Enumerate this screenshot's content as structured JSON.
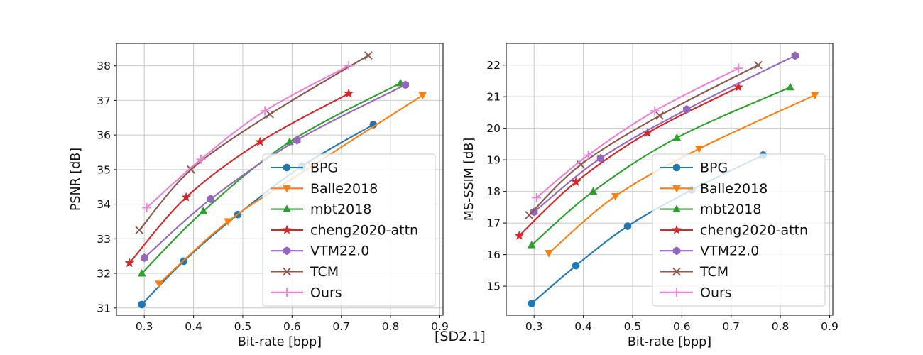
{
  "page": {
    "background": "#ffffff",
    "footnote": "[SD2.1]"
  },
  "legend_labels": [
    "BPG",
    "Balle2018",
    "mbt2018",
    "cheng2020-attn",
    "VTM22.0",
    "TCM",
    "Ours"
  ],
  "chart_data": [
    {
      "type": "line",
      "title": "",
      "xlabel": "Bit-rate [bpp]",
      "ylabel": "PSNR [dB]",
      "xlim": [
        0.2435,
        0.9065
      ],
      "ylim": [
        30.79,
        38.65
      ],
      "xticks": [
        0.3,
        0.4,
        0.5,
        0.6,
        0.7,
        0.8,
        0.9
      ],
      "yticks": [
        31,
        32,
        33,
        34,
        35,
        36,
        37,
        38
      ],
      "grid": true,
      "legend_position": "lower right",
      "series": [
        {
          "name": "BPG",
          "color": "#1f77b4",
          "marker": "circle",
          "points": [
            [
              0.295,
              31.1
            ],
            [
              0.38,
              32.35
            ],
            [
              0.49,
              33.7
            ],
            [
              0.62,
              35.1
            ],
            [
              0.765,
              36.3
            ]
          ]
        },
        {
          "name": "Balle2018",
          "color": "#ff7f0e",
          "marker": "triangle-down",
          "points": [
            [
              0.33,
              31.7
            ],
            [
              0.47,
              33.5
            ],
            [
              0.64,
              35.1
            ],
            [
              0.865,
              37.15
            ]
          ]
        },
        {
          "name": "mbt2018",
          "color": "#2ca02c",
          "marker": "triangle-up",
          "points": [
            [
              0.295,
              32.0
            ],
            [
              0.42,
              33.8
            ],
            [
              0.595,
              35.8
            ],
            [
              0.82,
              37.5
            ]
          ]
        },
        {
          "name": "cheng2020-attn",
          "color": "#d62728",
          "marker": "star",
          "points": [
            [
              0.27,
              32.3
            ],
            [
              0.385,
              34.2
            ],
            [
              0.535,
              35.8
            ],
            [
              0.715,
              37.2
            ]
          ]
        },
        {
          "name": "VTM22.0",
          "color": "#9467bd",
          "marker": "hexagon",
          "points": [
            [
              0.3,
              32.45
            ],
            [
              0.435,
              34.15
            ],
            [
              0.61,
              35.85
            ],
            [
              0.83,
              37.45
            ]
          ]
        },
        {
          "name": "TCM",
          "color": "#8c564b",
          "marker": "x",
          "points": [
            [
              0.29,
              33.25
            ],
            [
              0.395,
              35.0
            ],
            [
              0.555,
              36.6
            ],
            [
              0.755,
              38.3
            ]
          ]
        },
        {
          "name": "Ours",
          "color": "#ee80d6",
          "marker": "plus",
          "points": [
            [
              0.305,
              33.9
            ],
            [
              0.415,
              35.3
            ],
            [
              0.545,
              36.7
            ],
            [
              0.715,
              38.0
            ]
          ]
        }
      ]
    },
    {
      "type": "line",
      "title": "",
      "xlabel": "Bit-rate [bpp]",
      "ylabel": "MS-SSIM [dB]",
      "xlim": [
        0.2435,
        0.9065
      ],
      "ylim": [
        14.08,
        22.69
      ],
      "xticks": [
        0.3,
        0.4,
        0.5,
        0.6,
        0.7,
        0.8,
        0.9
      ],
      "yticks": [
        15,
        16,
        17,
        18,
        19,
        20,
        21,
        22
      ],
      "grid": true,
      "legend_position": "lower right",
      "series": [
        {
          "name": "BPG",
          "color": "#1f77b4",
          "marker": "circle",
          "points": [
            [
              0.295,
              14.45
            ],
            [
              0.385,
              15.65
            ],
            [
              0.49,
              16.9
            ],
            [
              0.62,
              18.05
            ],
            [
              0.765,
              19.15
            ]
          ]
        },
        {
          "name": "Balle2018",
          "color": "#ff7f0e",
          "marker": "triangle-down",
          "points": [
            [
              0.33,
              16.05
            ],
            [
              0.465,
              17.85
            ],
            [
              0.635,
              19.35
            ],
            [
              0.87,
              21.05
            ]
          ]
        },
        {
          "name": "mbt2018",
          "color": "#2ca02c",
          "marker": "triangle-up",
          "points": [
            [
              0.295,
              16.3
            ],
            [
              0.42,
              18.0
            ],
            [
              0.59,
              19.7
            ],
            [
              0.82,
              21.3
            ]
          ]
        },
        {
          "name": "cheng2020-attn",
          "color": "#d62728",
          "marker": "star",
          "points": [
            [
              0.27,
              16.6
            ],
            [
              0.385,
              18.3
            ],
            [
              0.53,
              19.85
            ],
            [
              0.715,
              21.3
            ]
          ]
        },
        {
          "name": "VTM22.0",
          "color": "#9467bd",
          "marker": "hexagon",
          "points": [
            [
              0.3,
              17.35
            ],
            [
              0.435,
              19.05
            ],
            [
              0.61,
              20.6
            ],
            [
              0.83,
              22.3
            ]
          ]
        },
        {
          "name": "TCM",
          "color": "#8c564b",
          "marker": "x",
          "points": [
            [
              0.29,
              17.25
            ],
            [
              0.395,
              18.85
            ],
            [
              0.555,
              20.4
            ],
            [
              0.755,
              22.0
            ]
          ]
        },
        {
          "name": "Ours",
          "color": "#ee80d6",
          "marker": "plus",
          "points": [
            [
              0.305,
              17.8
            ],
            [
              0.41,
              19.15
            ],
            [
              0.545,
              20.55
            ],
            [
              0.715,
              21.9
            ]
          ]
        }
      ]
    }
  ]
}
